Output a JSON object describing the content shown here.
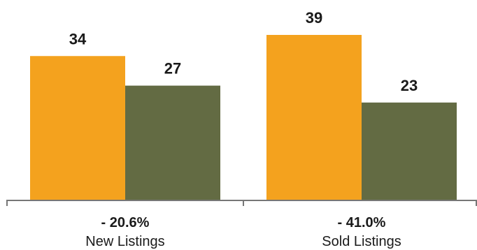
{
  "chart_data": {
    "type": "bar",
    "categories": [
      "New Listings",
      "Sold Listings"
    ],
    "change_labels": [
      "- 20.6%",
      "- 41.0%"
    ],
    "series": [
      {
        "values": [
          34,
          27
        ]
      },
      {
        "values": [
          39,
          23
        ]
      }
    ],
    "colors": {
      "primary": "#F4A21E",
      "secondary": "#636B43",
      "axis": "#777777"
    },
    "ylim": [
      0,
      39
    ],
    "grid": false,
    "legend": "none",
    "title": "",
    "xlabel": "",
    "ylabel": ""
  }
}
